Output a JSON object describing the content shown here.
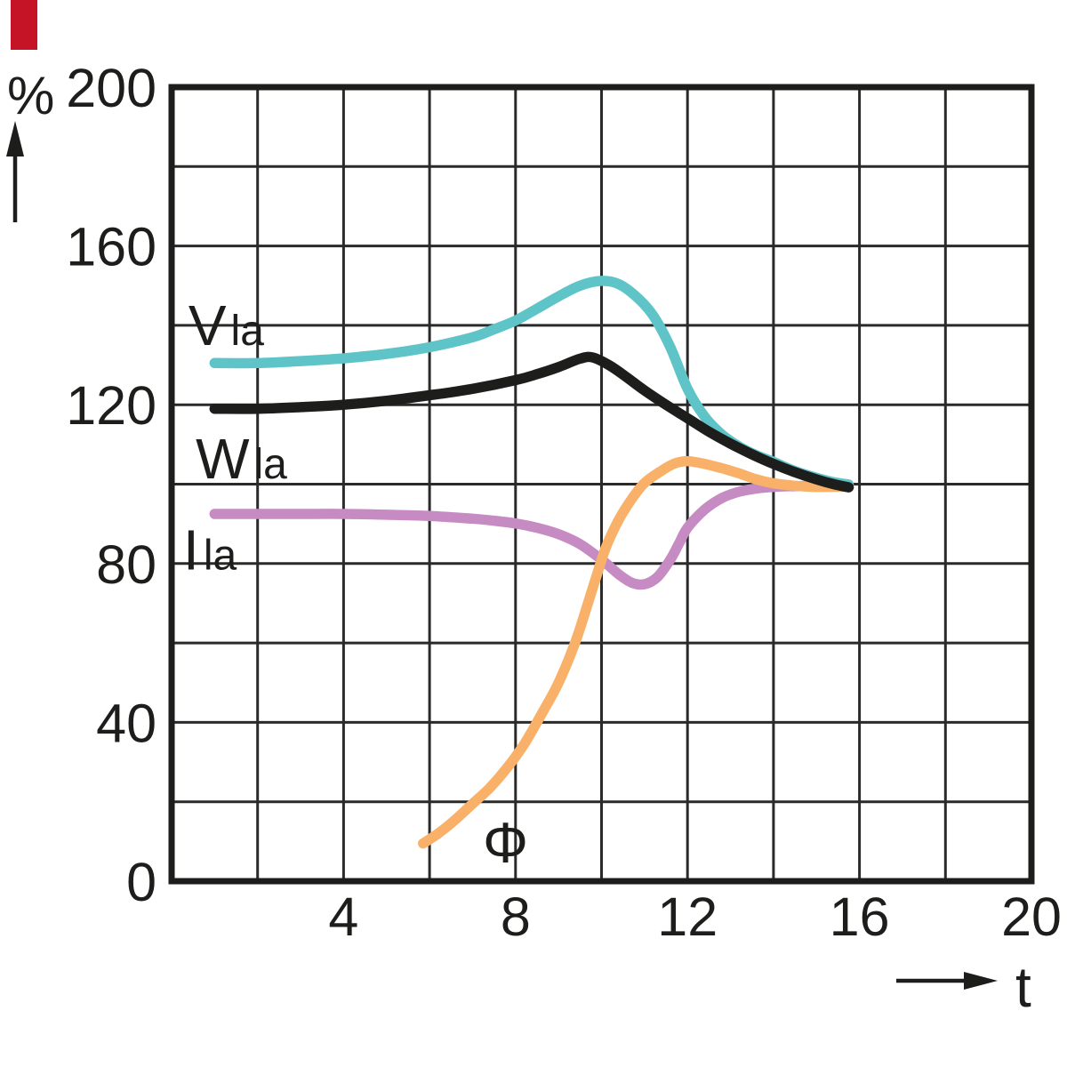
{
  "figure": {
    "corner_mark_color": "#c41425"
  },
  "chart_data": {
    "type": "line",
    "title": "",
    "xlabel": "t",
    "ylabel": "%",
    "xlim": [
      0,
      20
    ],
    "ylim": [
      0,
      200
    ],
    "x_ticks": [
      4,
      8,
      12,
      16,
      20
    ],
    "y_ticks": [
      0,
      40,
      80,
      120,
      160,
      200
    ],
    "grid": {
      "x_step": 2,
      "y_step": 20,
      "on": true
    },
    "axis_color": "#1d1d1b",
    "grid_color": "#2a2a2a",
    "legend_position": "labels-on-curves",
    "series": [
      {
        "name": "I_la",
        "label_main": "I",
        "label_sub": "la",
        "label_pos": [
          0.27,
          78.5
        ],
        "color": "#c68bc2",
        "points": [
          [
            1,
            92.5
          ],
          [
            2,
            92.5
          ],
          [
            3,
            92.5
          ],
          [
            4,
            92.5
          ],
          [
            5,
            92.3
          ],
          [
            6,
            92
          ],
          [
            7,
            91.3
          ],
          [
            7.5,
            90.8
          ],
          [
            8,
            90.1
          ],
          [
            8.5,
            89
          ],
          [
            9,
            87.4
          ],
          [
            9.5,
            84.9
          ],
          [
            10,
            81
          ],
          [
            10.4,
            77.3
          ],
          [
            10.7,
            75.2
          ],
          [
            11,
            74.8
          ],
          [
            11.3,
            76.6
          ],
          [
            11.6,
            81
          ],
          [
            11.8,
            85
          ],
          [
            12,
            89
          ],
          [
            12.4,
            93.6
          ],
          [
            12.8,
            96.5
          ],
          [
            13.2,
            98.1
          ],
          [
            13.6,
            98.9
          ],
          [
            14,
            99.3
          ],
          [
            14.5,
            99.5
          ],
          [
            15,
            99.5
          ],
          [
            15.75,
            99.5
          ]
        ]
      },
      {
        "name": "Phi",
        "label_main": "Φ",
        "label_sub": "",
        "label_pos": [
          7.24,
          4.7
        ],
        "color": "#f9b169",
        "points": [
          [
            5.85,
            9.5
          ],
          [
            6.2,
            12
          ],
          [
            6.6,
            15.5
          ],
          [
            7,
            19.5
          ],
          [
            7.4,
            23.5
          ],
          [
            7.8,
            28.5
          ],
          [
            8.2,
            34.5
          ],
          [
            8.6,
            42
          ],
          [
            9,
            50
          ],
          [
            9.4,
            60.5
          ],
          [
            9.8,
            74
          ],
          [
            10.1,
            84
          ],
          [
            10.4,
            91
          ],
          [
            10.7,
            96.2
          ],
          [
            11,
            100.3
          ],
          [
            11.4,
            103.4
          ],
          [
            11.7,
            105.2
          ],
          [
            12,
            105.8
          ],
          [
            12.4,
            105.1
          ],
          [
            12.8,
            104
          ],
          [
            13.2,
            102.7
          ],
          [
            13.6,
            101.2
          ],
          [
            14,
            100.2
          ],
          [
            14.5,
            99.6
          ],
          [
            15,
            99.3
          ],
          [
            15.75,
            99.4
          ]
        ]
      },
      {
        "name": "V_la",
        "label_main": "V",
        "label_sub": "la",
        "label_pos": [
          0.39,
          135
        ],
        "color": "#5ec4c8",
        "points": [
          [
            1,
            130.5
          ],
          [
            2,
            130.5
          ],
          [
            3,
            131
          ],
          [
            4,
            131.7
          ],
          [
            5,
            132.8
          ],
          [
            6,
            134.5
          ],
          [
            7,
            137
          ],
          [
            7.5,
            139
          ],
          [
            8,
            141.2
          ],
          [
            8.5,
            144.2
          ],
          [
            9,
            147.3
          ],
          [
            9.5,
            150
          ],
          [
            10,
            151.2
          ],
          [
            10.4,
            150.4
          ],
          [
            10.8,
            147.3
          ],
          [
            11.2,
            142.5
          ],
          [
            11.6,
            134.5
          ],
          [
            12,
            124
          ],
          [
            12.4,
            117
          ],
          [
            12.8,
            112.5
          ],
          [
            13.2,
            109.5
          ],
          [
            13.6,
            107.3
          ],
          [
            14,
            105.6
          ],
          [
            14.5,
            103.3
          ],
          [
            15,
            101.6
          ],
          [
            15.4,
            100.5
          ],
          [
            15.75,
            99.9
          ]
        ]
      },
      {
        "name": "W_la",
        "label_main": "W",
        "label_sub": "la",
        "label_pos": [
          0.56,
          101.5
        ],
        "color": "#1d1d1b",
        "points": [
          [
            1,
            119
          ],
          [
            2,
            119
          ],
          [
            3,
            119.4
          ],
          [
            4,
            120
          ],
          [
            5,
            121
          ],
          [
            6,
            122.4
          ],
          [
            7,
            124
          ],
          [
            8,
            126.2
          ],
          [
            8.5,
            127.7
          ],
          [
            9,
            129.5
          ],
          [
            9.5,
            131.6
          ],
          [
            9.8,
            131.9
          ],
          [
            10.2,
            129.8
          ],
          [
            10.6,
            126.8
          ],
          [
            11,
            123.6
          ],
          [
            11.5,
            120
          ],
          [
            12,
            116.6
          ],
          [
            12.5,
            113.2
          ],
          [
            13,
            110.2
          ],
          [
            13.5,
            107.5
          ],
          [
            14,
            105.1
          ],
          [
            14.5,
            103
          ],
          [
            15,
            101.2
          ],
          [
            15.4,
            100
          ],
          [
            15.75,
            99.2
          ]
        ]
      }
    ]
  }
}
